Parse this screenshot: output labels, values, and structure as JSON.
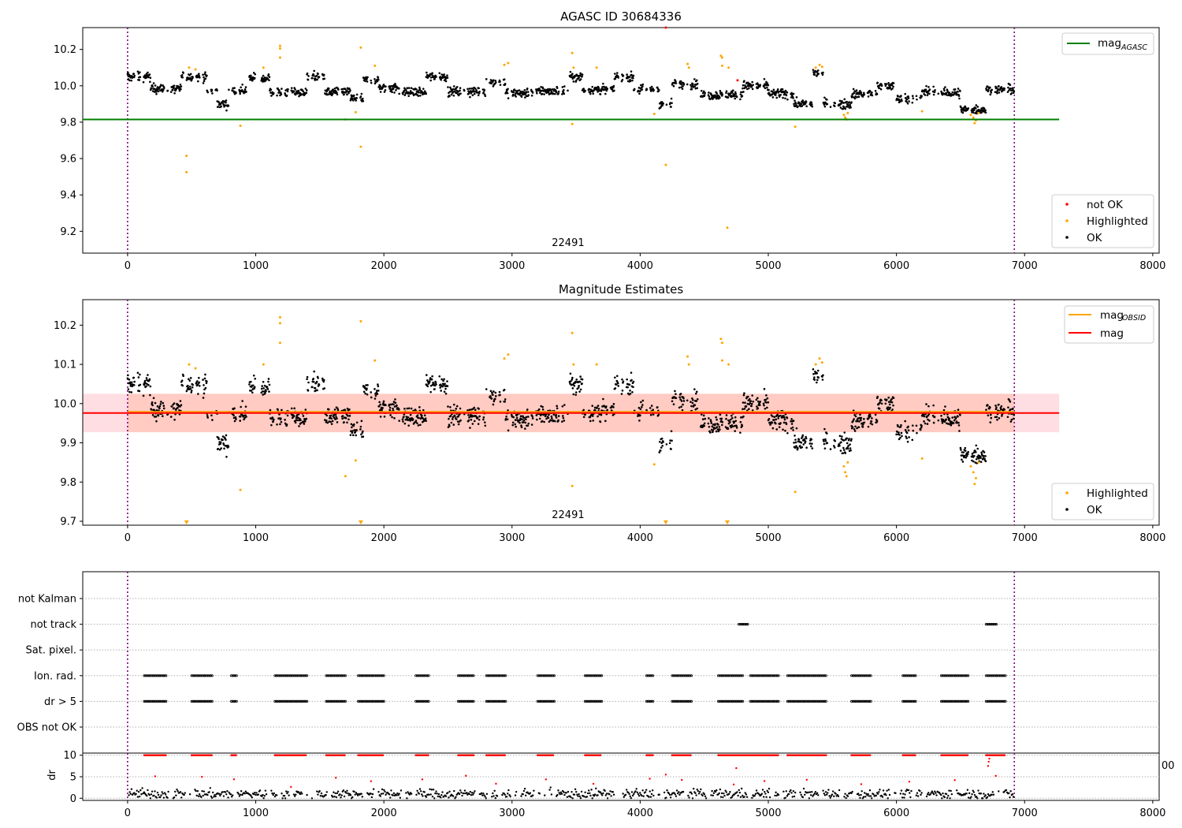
{
  "chart_data": [
    {
      "type": "scatter",
      "title": "AGASC ID 30684336",
      "xlim": [
        -350,
        8050
      ],
      "ylim": [
        9.08,
        10.32
      ],
      "xticks": [
        0,
        1000,
        2000,
        3000,
        4000,
        5000,
        6000,
        7000,
        8000
      ],
      "yticks": [
        9.2,
        9.4,
        9.6,
        9.8,
        10.0,
        10.2
      ],
      "obs_boundaries": [
        0,
        6920
      ],
      "obs_label": {
        "text": "22491",
        "x": 3450
      },
      "lines": [
        {
          "name": "mag",
          "subscript": "AGASC",
          "color": "#008000",
          "y": 9.815,
          "x": [
            -350,
            7270
          ]
        }
      ],
      "legend_lines_position": "top-right",
      "legend_points_position": "bottom-right",
      "point_series": [
        {
          "name": "not OK",
          "color": "#ff0000"
        },
        {
          "name": "Highlighted",
          "color": "#ffa500"
        },
        {
          "name": "OK",
          "color": "#000000"
        }
      ],
      "ok_levels": [
        {
          "x": [
            0,
            180
          ],
          "y": 10.05
        },
        {
          "x": [
            180,
            420
          ],
          "y": 9.985
        },
        {
          "x": [
            420,
            620
          ],
          "y": 10.05
        },
        {
          "x": [
            620,
            700
          ],
          "y": 9.97
        },
        {
          "x": [
            700,
            790
          ],
          "y": 9.9
        },
        {
          "x": [
            790,
            950
          ],
          "y": 9.975
        },
        {
          "x": [
            950,
            1110
          ],
          "y": 10.04
        },
        {
          "x": [
            1110,
            1400
          ],
          "y": 9.965
        },
        {
          "x": [
            1400,
            1540
          ],
          "y": 10.05
        },
        {
          "x": [
            1540,
            1740
          ],
          "y": 9.965
        },
        {
          "x": [
            1740,
            1840
          ],
          "y": 9.93
        },
        {
          "x": [
            1840,
            1960
          ],
          "y": 10.03
        },
        {
          "x": [
            1960,
            2120
          ],
          "y": 9.99
        },
        {
          "x": [
            2120,
            2330
          ],
          "y": 9.965
        },
        {
          "x": [
            2330,
            2500
          ],
          "y": 10.05
        },
        {
          "x": [
            2500,
            2800
          ],
          "y": 9.97
        },
        {
          "x": [
            2800,
            2950
          ],
          "y": 10.02
        },
        {
          "x": [
            2950,
            3150
          ],
          "y": 9.96
        },
        {
          "x": [
            3150,
            3450
          ],
          "y": 9.97
        },
        {
          "x": [
            3450,
            3550
          ],
          "y": 10.05
        },
        {
          "x": [
            3550,
            3800
          ],
          "y": 9.98
        },
        {
          "x": [
            3800,
            3950
          ],
          "y": 10.05
        },
        {
          "x": [
            3950,
            4150
          ],
          "y": 9.98
        },
        {
          "x": [
            4150,
            4250
          ],
          "y": 9.9
        },
        {
          "x": [
            4250,
            4450
          ],
          "y": 10.01
        },
        {
          "x": [
            4450,
            4600
          ],
          "y": 9.95
        },
        {
          "x": [
            4600,
            4800
          ],
          "y": 9.95
        },
        {
          "x": [
            4800,
            5000
          ],
          "y": 10.0
        },
        {
          "x": [
            5000,
            5200
          ],
          "y": 9.955
        },
        {
          "x": [
            5200,
            5350
          ],
          "y": 9.9
        },
        {
          "x": [
            5350,
            5430
          ],
          "y": 10.07
        },
        {
          "x": [
            5430,
            5650
          ],
          "y": 9.9
        },
        {
          "x": [
            5650,
            5850
          ],
          "y": 9.955
        },
        {
          "x": [
            5850,
            6000
          ],
          "y": 10.0
        },
        {
          "x": [
            6000,
            6200
          ],
          "y": 9.93
        },
        {
          "x": [
            6200,
            6350
          ],
          "y": 9.97
        },
        {
          "x": [
            6350,
            6500
          ],
          "y": 9.96
        },
        {
          "x": [
            6500,
            6700
          ],
          "y": 9.87
        },
        {
          "x": [
            6700,
            6920
          ],
          "y": 9.98
        }
      ],
      "highlighted_points": [
        [
          460,
          9.615
        ],
        [
          460,
          9.525
        ],
        [
          480,
          10.1
        ],
        [
          530,
          10.09
        ],
        [
          880,
          9.78
        ],
        [
          1060,
          10.1
        ],
        [
          1190,
          10.22
        ],
        [
          1190,
          10.205
        ],
        [
          1190,
          10.155
        ],
        [
          1700,
          9.815
        ],
        [
          1780,
          9.855
        ],
        [
          1820,
          10.21
        ],
        [
          1820,
          9.665
        ],
        [
          1930,
          10.11
        ],
        [
          2940,
          10.115
        ],
        [
          2970,
          10.125
        ],
        [
          3470,
          10.18
        ],
        [
          3470,
          9.79
        ],
        [
          3480,
          10.1
        ],
        [
          3660,
          10.1
        ],
        [
          4110,
          9.845
        ],
        [
          4200,
          9.565
        ],
        [
          4370,
          10.12
        ],
        [
          4380,
          10.1
        ],
        [
          4630,
          10.165
        ],
        [
          4640,
          10.155
        ],
        [
          4640,
          10.11
        ],
        [
          4680,
          9.22
        ],
        [
          4690,
          10.1
        ],
        [
          5210,
          9.775
        ],
        [
          5370,
          10.1
        ],
        [
          5400,
          10.115
        ],
        [
          5420,
          10.105
        ],
        [
          5590,
          9.84
        ],
        [
          5600,
          9.825
        ],
        [
          5610,
          9.815
        ],
        [
          5620,
          9.85
        ],
        [
          6200,
          9.86
        ],
        [
          6580,
          9.84
        ],
        [
          6600,
          9.825
        ],
        [
          6620,
          9.81
        ],
        [
          6640,
          9.85
        ],
        [
          6610,
          9.795
        ]
      ],
      "not_ok_points": [
        [
          4200,
          10.33
        ],
        [
          4760,
          10.03
        ]
      ]
    },
    {
      "type": "scatter",
      "title": "Magnitude Estimates",
      "xlim": [
        -350,
        8050
      ],
      "ylim": [
        9.69,
        10.265
      ],
      "xticks": [
        0,
        1000,
        2000,
        3000,
        4000,
        5000,
        6000,
        7000,
        8000
      ],
      "yticks": [
        9.7,
        9.8,
        9.9,
        10.0,
        10.1,
        10.2
      ],
      "obs_boundaries": [
        0,
        6920
      ],
      "obs_label": {
        "text": "22491",
        "x": 3450
      },
      "band": {
        "y": [
          9.927,
          10.025
        ],
        "x": [
          -350,
          7270
        ],
        "color": "#ffb6c1"
      },
      "lines": [
        {
          "name": "mag",
          "subscript": "OBSID",
          "color": "#ffa500",
          "y": 9.976,
          "x": [
            0,
            6920
          ]
        },
        {
          "name": "mag",
          "subscript": "",
          "color": "#ff0000",
          "y": 9.976,
          "x": [
            -350,
            7270
          ]
        }
      ],
      "legend_lines_position": "top-right",
      "legend_points_position": "bottom-right",
      "point_series": [
        {
          "name": "Highlighted",
          "color": "#ffa500"
        },
        {
          "name": "OK",
          "color": "#000000"
        }
      ],
      "clipped_markers_x": [
        460,
        1820,
        4200,
        4680
      ]
    },
    {
      "type": "scatter",
      "xlim": [
        -350,
        8050
      ],
      "categories": [
        "not Kalman",
        "not track",
        "Sat. pixel.",
        "Ion. rad.",
        "dr > 5",
        "OBS not OK"
      ],
      "obs_boundaries": [
        0,
        6920
      ],
      "flag_runs": {
        "not track": [
          [
            4770,
            4840
          ],
          [
            6700,
            6780
          ]
        ],
        "Ion. rad.": [
          [
            130,
            300
          ],
          [
            500,
            660
          ],
          [
            810,
            850
          ],
          [
            1150,
            1400
          ],
          [
            1550,
            1700
          ],
          [
            1800,
            2000
          ],
          [
            2250,
            2350
          ],
          [
            2580,
            2700
          ],
          [
            2800,
            2950
          ],
          [
            3200,
            3330
          ],
          [
            3570,
            3700
          ],
          [
            4050,
            4100
          ],
          [
            4250,
            4400
          ],
          [
            4610,
            4800
          ],
          [
            4860,
            5080
          ],
          [
            5150,
            5450
          ],
          [
            5650,
            5800
          ],
          [
            6050,
            6150
          ],
          [
            6350,
            6560
          ],
          [
            6700,
            6850
          ]
        ],
        "dr > 5": [
          [
            130,
            300
          ],
          [
            500,
            660
          ],
          [
            810,
            850
          ],
          [
            1150,
            1400
          ],
          [
            1550,
            1700
          ],
          [
            1800,
            2000
          ],
          [
            2250,
            2350
          ],
          [
            2580,
            2700
          ],
          [
            2800,
            2950
          ],
          [
            3200,
            3330
          ],
          [
            3570,
            3700
          ],
          [
            4050,
            4100
          ],
          [
            4250,
            4400
          ],
          [
            4610,
            4800
          ],
          [
            4860,
            5080
          ],
          [
            5150,
            5450
          ],
          [
            5650,
            5800
          ],
          [
            6050,
            6150
          ],
          [
            6350,
            6560
          ],
          [
            6700,
            6850
          ]
        ]
      }
    },
    {
      "type": "scatter",
      "ylabel": "dr",
      "xlim": [
        -350,
        8050
      ],
      "ylim": [
        -0.5,
        10.5
      ],
      "yticks": [
        0,
        5,
        10
      ],
      "xticks": [
        0,
        1000,
        2000,
        3000,
        4000,
        5000,
        6000,
        7000,
        8000
      ],
      "obs_boundaries": [
        0,
        6920
      ],
      "overlapped_tick_label": "00",
      "high_dr_runs": [
        [
          130,
          300
        ],
        [
          500,
          660
        ],
        [
          810,
          850
        ],
        [
          1150,
          1400
        ],
        [
          1550,
          1700
        ],
        [
          1800,
          2000
        ],
        [
          2250,
          2350
        ],
        [
          2580,
          2700
        ],
        [
          2800,
          2950
        ],
        [
          3200,
          3330
        ],
        [
          3570,
          3700
        ],
        [
          4050,
          4100
        ],
        [
          4250,
          4400
        ],
        [
          4610,
          4850
        ],
        [
          4860,
          5080
        ],
        [
          5150,
          5450
        ],
        [
          5650,
          5800
        ],
        [
          6050,
          6150
        ],
        [
          6350,
          6560
        ],
        [
          6700,
          6850
        ]
      ]
    }
  ]
}
